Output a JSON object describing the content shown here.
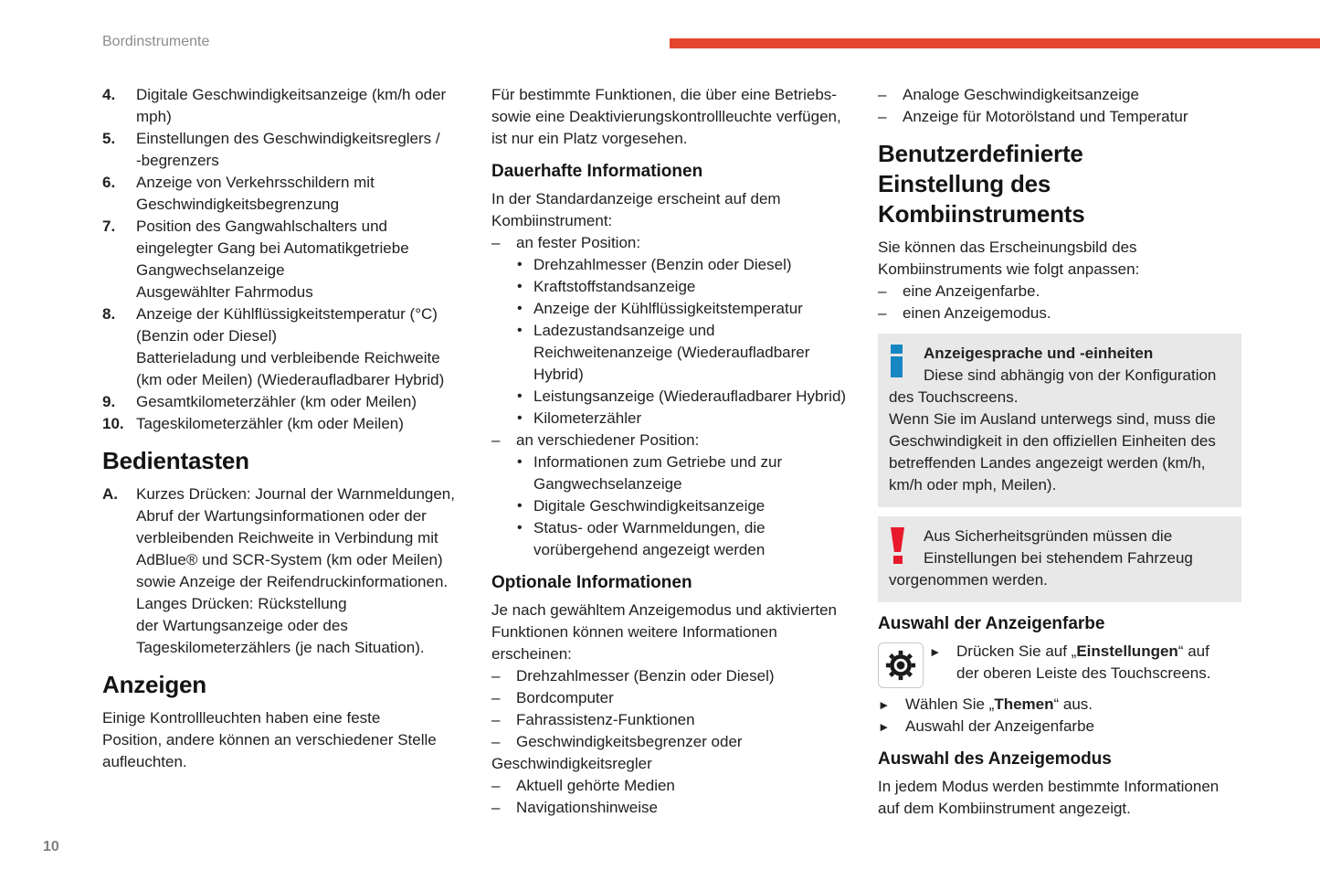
{
  "page": {
    "header": "Bordinstrumente",
    "page_number": "10"
  },
  "colors": {
    "accent": "#e3452f",
    "box_bg": "#e8e8e8",
    "info_icon": "#1787c3",
    "warning_icon": "#e8192c",
    "header_text": "#8c8c8c",
    "body_text": "#212121",
    "page_number": "#7f7f7f"
  },
  "left": {
    "blocks": [
      {
        "type": "item",
        "style": "num",
        "marker": "4.",
        "lines": [
          "Digitale Geschwindigkeitsanzeige (km/h oder",
          "mph)"
        ]
      },
      {
        "type": "item",
        "style": "num",
        "marker": "5.",
        "lines": [
          "Einstellungen des Geschwindigkeitsreglers /",
          "-begrenzers"
        ]
      },
      {
        "type": "item",
        "style": "num",
        "marker": "6.",
        "lines": [
          "Anzeige von Verkehrsschildern mit",
          "Geschwindigkeitsbegrenzung"
        ]
      },
      {
        "type": "item",
        "style": "num",
        "marker": "7.",
        "lines": [
          "Position des Gangwahlschalters und",
          "eingelegter Gang bei Automatikgetriebe",
          "Gangwechselanzeige",
          "Ausgewählter Fahrmodus"
        ]
      },
      {
        "type": "item",
        "style": "num",
        "marker": "8.",
        "lines": [
          "Anzeige der Kühlflüssigkeitstemperatur (°C)",
          "(Benzin oder Diesel)",
          "Batterieladung und verbleibende Reichweite",
          "(km oder Meilen) (Wiederaufladbarer Hybrid)"
        ]
      },
      {
        "type": "item",
        "style": "num",
        "marker": "9.",
        "lines": [
          "Gesamtkilometerzähler (km oder Meilen)"
        ]
      },
      {
        "type": "item",
        "style": "num",
        "marker": "10.",
        "lines": [
          "Tageskilometerzähler (km oder Meilen)"
        ]
      },
      {
        "type": "h1",
        "lines": [
          "Bedientasten"
        ]
      },
      {
        "type": "item",
        "style": "letter",
        "marker": "A.",
        "lines": [
          "Kurzes Drücken: Journal der Warnmeldungen,",
          "Abruf der Wartungsinformationen oder der",
          "verbleibenden Reichweite in Verbindung mit",
          "AdBlue® und SCR-System (km oder Meilen)",
          "sowie Anzeige der Reifendruckinformationen.",
          "Langes Drücken: Rückstellung",
          "der Wartungsanzeige oder des",
          "Tageskilometerzählers (je nach Situation)."
        ]
      },
      {
        "type": "h1",
        "lines": [
          "Anzeigen"
        ]
      },
      {
        "type": "p",
        "lines": [
          "Einige Kontrollleuchten haben eine feste",
          "Position, andere können an verschiedener Stelle",
          "aufleuchten."
        ]
      }
    ]
  },
  "middle": {
    "blocks": [
      {
        "type": "p",
        "lines": [
          "Für bestimmte Funktionen, die über eine Betriebs-",
          "sowie eine Deaktivierungskontrollleuchte verfügen,",
          "ist nur ein Platz vorgesehen."
        ]
      },
      {
        "type": "h2",
        "lines": [
          "Dauerhafte Informationen"
        ]
      },
      {
        "type": "p",
        "lines": [
          "In der Standardanzeige erscheint auf dem",
          "Kombiinstrument:"
        ]
      },
      {
        "type": "item",
        "style": "dash",
        "marker": "–",
        "lines": [
          "an fester Position:"
        ]
      },
      {
        "type": "item",
        "style": "dot",
        "marker": "•",
        "lines": [
          "Drehzahlmesser (Benzin oder Diesel)"
        ]
      },
      {
        "type": "item",
        "style": "dot",
        "marker": "•",
        "lines": [
          "Kraftstoffstandsanzeige"
        ]
      },
      {
        "type": "item",
        "style": "dot",
        "marker": "•",
        "lines": [
          "Anzeige der Kühlflüssigkeitstemperatur"
        ]
      },
      {
        "type": "item",
        "style": "dot",
        "marker": "•",
        "lines": [
          "Ladezustandsanzeige und",
          "Reichweitenanzeige (Wiederaufladbarer",
          "Hybrid)"
        ]
      },
      {
        "type": "item",
        "style": "dot",
        "marker": "•",
        "lines": [
          "Leistungsanzeige (Wiederaufladbarer Hybrid)"
        ]
      },
      {
        "type": "item",
        "style": "dot",
        "marker": "•",
        "lines": [
          "Kilometerzähler"
        ]
      },
      {
        "type": "item",
        "style": "dash",
        "marker": "–",
        "lines": [
          "an verschiedener Position:"
        ]
      },
      {
        "type": "item",
        "style": "dot",
        "marker": "•",
        "lines": [
          "Informationen zum Getriebe und zur",
          "Gangwechselanzeige"
        ]
      },
      {
        "type": "item",
        "style": "dot",
        "marker": "•",
        "lines": [
          "Digitale Geschwindigkeitsanzeige"
        ]
      },
      {
        "type": "item",
        "style": "dot",
        "marker": "•",
        "lines": [
          "Status- oder Warnmeldungen, die",
          "vorübergehend angezeigt werden"
        ]
      },
      {
        "type": "h2",
        "lines": [
          "Optionale Informationen"
        ]
      },
      {
        "type": "p",
        "lines": [
          "Je nach gewähltem Anzeigemodus und aktivierten",
          "Funktionen können weitere Informationen",
          "erscheinen:"
        ]
      },
      {
        "type": "item",
        "style": "dash",
        "marker": "–",
        "lines": [
          "Drehzahlmesser (Benzin oder Diesel)"
        ]
      },
      {
        "type": "item",
        "style": "dash",
        "marker": "–",
        "lines": [
          "Bordcomputer"
        ]
      },
      {
        "type": "item",
        "style": "dash",
        "marker": "–",
        "lines": [
          "Fahrassistenz-Funktionen"
        ]
      },
      {
        "type": "item",
        "style": "dash",
        "marker": "–",
        "lines": [
          "Geschwindigkeitsbegrenzer oder",
          {
            "line": "Geschwindigkeitsregler",
            "out": true
          }
        ]
      },
      {
        "type": "item",
        "style": "dash",
        "marker": "–",
        "lines": [
          "Aktuell gehörte Medien"
        ]
      },
      {
        "type": "item",
        "style": "dash",
        "marker": "–",
        "lines": [
          "Navigationshinweise"
        ]
      }
    ]
  },
  "right": {
    "blocks": [
      {
        "type": "item",
        "style": "dash",
        "marker": "–",
        "lines": [
          "Analoge Geschwindigkeitsanzeige"
        ]
      },
      {
        "type": "item",
        "style": "dash",
        "marker": "–",
        "lines": [
          "Anzeige für Motorölstand und Temperatur"
        ]
      },
      {
        "type": "h1",
        "lines": [
          "Benutzerdefinierte",
          "Einstellung des",
          "Kombiinstruments"
        ]
      },
      {
        "type": "p",
        "lines": [
          "Sie können das Erscheinungsbild des",
          "Kombiinstruments wie folgt anpassen:"
        ]
      },
      {
        "type": "item",
        "style": "dash",
        "marker": "–",
        "lines": [
          "eine Anzeigenfarbe."
        ]
      },
      {
        "type": "item",
        "style": "dash",
        "marker": "–",
        "lines": [
          "einen Anzeigemodus."
        ]
      },
      {
        "type": "box",
        "icon": "info",
        "lines": [
          {
            "line": [
              {
                "b": "Anzeigesprache und -einheiten"
              }
            ],
            "ind": true
          },
          {
            "line": "Diese sind abhängig von der Konfiguration",
            "ind": true
          },
          "des Touchscreens.",
          "Wenn Sie im Ausland unterwegs sind, muss die",
          "Geschwindigkeit in den offiziellen Einheiten des",
          "betreffenden Landes angezeigt werden (km/h,",
          "km/h oder mph, Meilen)."
        ]
      },
      {
        "type": "box",
        "icon": "warning",
        "lines": [
          {
            "line": "Aus Sicherheitsgründen müssen die",
            "ind": true
          },
          {
            "line": "Einstellungen bei stehendem Fahrzeug",
            "ind": true
          },
          "vorgenommen werden."
        ]
      },
      {
        "type": "h2",
        "lines": [
          "Auswahl der Anzeigenfarbe"
        ]
      },
      {
        "type": "gear-row",
        "icon": "gear",
        "item": {
          "style": "arrow",
          "marker": "►",
          "lines": [
            [
              {
                "t": "Drücken Sie auf „"
              },
              {
                "b": "Einstellungen"
              },
              {
                "t": "“ auf"
              }
            ],
            {
              "line": "der oberen Leiste des Touchscreens.",
              "out": false
            }
          ]
        }
      },
      {
        "type": "item",
        "style": "arrow",
        "marker": "►",
        "lines": [
          [
            {
              "t": "Wählen Sie „"
            },
            {
              "b": "Themen"
            },
            {
              "t": "“ aus."
            }
          ]
        ]
      },
      {
        "type": "item",
        "style": "arrow",
        "marker": "►",
        "lines": [
          "Auswahl der Anzeigenfarbe"
        ]
      },
      {
        "type": "h2",
        "lines": [
          "Auswahl des Anzeigemodus"
        ]
      },
      {
        "type": "p",
        "lines": [
          "In jedem Modus werden bestimmte Informationen",
          "auf dem Kombiinstrument angezeigt."
        ]
      }
    ]
  }
}
